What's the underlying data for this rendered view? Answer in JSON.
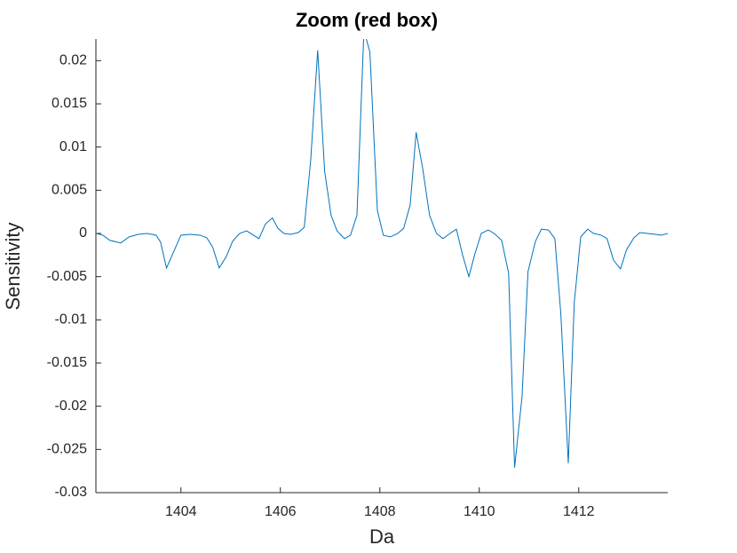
{
  "chart_data": {
    "type": "line",
    "title": "Zoom (red box)",
    "xlabel": "Da",
    "ylabel": "Sensitivity",
    "x": [
      1402.29,
      1402.43,
      1402.57,
      1402.79,
      1402.96,
      1403.14,
      1403.32,
      1403.5,
      1403.59,
      1403.71,
      1404.0,
      1404.18,
      1404.39,
      1404.52,
      1404.64,
      1404.77,
      1404.91,
      1405.04,
      1405.18,
      1405.32,
      1405.57,
      1405.7,
      1405.84,
      1405.95,
      1406.07,
      1406.21,
      1406.36,
      1406.48,
      1406.61,
      1406.75,
      1406.89,
      1407.02,
      1407.14,
      1407.29,
      1407.41,
      1407.54,
      1407.68,
      1407.8,
      1407.95,
      1408.07,
      1408.21,
      1408.36,
      1408.48,
      1408.61,
      1408.73,
      1408.86,
      1409.0,
      1409.14,
      1409.27,
      1409.41,
      1409.54,
      1409.66,
      1409.79,
      1409.91,
      1410.04,
      1410.18,
      1410.3,
      1410.45,
      1410.59,
      1410.71,
      1410.86,
      1410.98,
      1411.13,
      1411.25,
      1411.39,
      1411.52,
      1411.64,
      1411.79,
      1411.91,
      1412.04,
      1412.18,
      1412.3,
      1412.45,
      1412.57,
      1412.7,
      1412.84,
      1412.96,
      1413.11,
      1413.23,
      1413.38,
      1413.54,
      1413.66,
      1413.79
    ],
    "series": [
      {
        "name": "Sensitivity",
        "color": "#0072bd",
        "values": [
          0,
          -0.0002,
          -0.0008,
          -0.0011,
          -0.0004,
          -0.0001,
          0,
          -0.0002,
          -0.001,
          -0.004,
          -0.0002,
          -0.0001,
          -0.0002,
          -0.0005,
          -0.0016,
          -0.004,
          -0.0027,
          -0.0009,
          0,
          0.0003,
          -0.0006,
          0.0011,
          0.0018,
          0.0006,
          0,
          -0.0001,
          0.0001,
          0.0007,
          0.0085,
          0.0212,
          0.0072,
          0.0021,
          0.0003,
          -0.0006,
          -0.0002,
          0.0021,
          0.0235,
          0.021,
          0.0027,
          -0.0002,
          -0.0004,
          0,
          0.0006,
          0.0033,
          0.0117,
          0.0076,
          0.0021,
          0,
          -0.0006,
          0,
          0.0005,
          -0.0024,
          -0.005,
          -0.0024,
          0,
          0.0004,
          0,
          -0.0008,
          -0.0046,
          -0.0271,
          -0.0189,
          -0.0044,
          -0.0009,
          0.0005,
          0.0004,
          -0.0006,
          -0.0093,
          -0.0266,
          -0.008,
          -0.0004,
          0.0005,
          0,
          -0.0002,
          -0.0006,
          -0.0031,
          -0.0041,
          -0.0019,
          -0.0005,
          0.0001,
          0,
          -0.0001,
          -0.0002,
          0
        ]
      }
    ],
    "xlim": [
      1402.29,
      1413.79
    ],
    "ylim": [
      -0.03,
      0.0225
    ],
    "xticks": [
      1404,
      1406,
      1408,
      1410,
      1412
    ],
    "yticks": [
      0.02,
      0.015,
      0.01,
      0.005,
      0,
      -0.005,
      -0.01,
      -0.015,
      -0.02,
      -0.025,
      -0.03
    ]
  }
}
